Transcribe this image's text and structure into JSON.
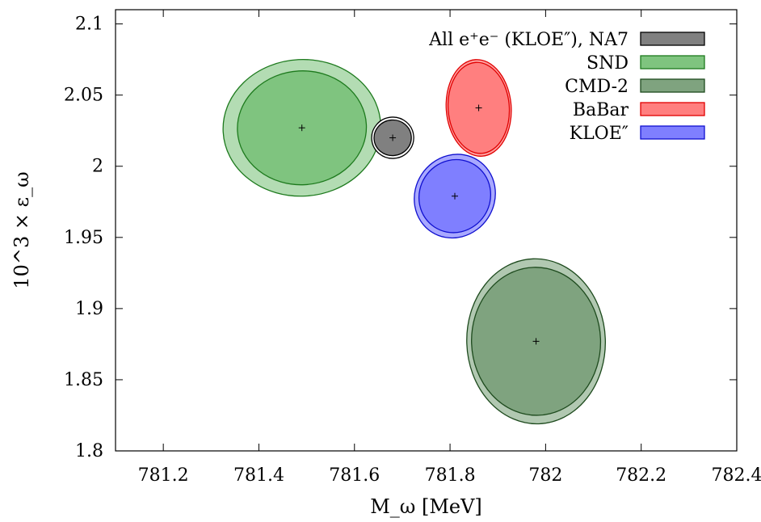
{
  "chart_data": {
    "type": "scatter",
    "title": "",
    "xlabel": "M_ω [MeV]",
    "ylabel": "10^3 × ε_ω",
    "xlim": [
      781.1,
      782.4
    ],
    "ylim": [
      1.8,
      2.11
    ],
    "xticks": [
      "781.2",
      "781.4",
      "781.6",
      "781.8",
      "782",
      "782.2",
      "782.4"
    ],
    "yticks": [
      "1.8",
      "1.85",
      "1.9",
      "1.95",
      "2",
      "2.05",
      "2.1"
    ],
    "grid": false,
    "legend_position": "top-right",
    "series": [
      {
        "name": "SND",
        "cx": 781.49,
        "cy": 2.027,
        "rx_outer": 0.165,
        "ry_outer": 0.048,
        "rx_inner": 0.135,
        "ry_inner": 0.04,
        "angle": -3,
        "fill": "#7fc47f",
        "fill_outer": "#b3dcb3",
        "stroke": "#1d7a1d"
      },
      {
        "name": "BaBar",
        "cx": 781.86,
        "cy": 2.041,
        "rx_outer": 0.068,
        "ry_outer": 0.034,
        "rx_inner": 0.064,
        "ry_inner": 0.032,
        "angle": -4,
        "fill": "#ff7f7f",
        "fill_outer": "#ff9f9f",
        "stroke": "#e00000"
      },
      {
        "name": "KLOE″",
        "cx": 781.81,
        "cy": 1.979,
        "rx_outer": 0.083,
        "ry_outer": 0.03,
        "rx_inner": 0.074,
        "ry_inner": 0.026,
        "angle": 33,
        "fill": "#7f7fff",
        "fill_outer": "#a8a8ff",
        "stroke": "#1010d0"
      },
      {
        "name": "CMD-2",
        "cx": 781.98,
        "cy": 1.877,
        "rx_outer": 0.145,
        "ry_outer": 0.058,
        "rx_inner": 0.135,
        "ry_inner": 0.052,
        "angle": -2,
        "fill": "#7fa37f",
        "fill_outer": "#b1c8b1",
        "stroke": "#1d4a1d"
      },
      {
        "name": "All e⁺e⁻ (KLOE″), NA7",
        "cx": 781.68,
        "cy": 2.02,
        "rx_outer": 0.044,
        "ry_outer": 0.0145,
        "rx_inner": 0.039,
        "ry_inner": 0.0125,
        "angle": -5,
        "fill": "#808080",
        "fill_outer": "#ffffff",
        "stroke": "#000000"
      }
    ]
  },
  "legend": [
    {
      "label": "All e⁺e⁻ (KLOE″), NA7",
      "fill": "#808080",
      "stroke": "#000000"
    },
    {
      "label": "SND",
      "fill": "#7fc47f",
      "stroke": "#1d7a1d"
    },
    {
      "label": "CMD-2",
      "fill": "#7fa37f",
      "stroke": "#1d4a1d"
    },
    {
      "label": "BaBar",
      "fill": "#ff7f7f",
      "stroke": "#e00000"
    },
    {
      "label": "KLOE″",
      "fill": "#7f7fff",
      "stroke": "#1010d0"
    }
  ]
}
